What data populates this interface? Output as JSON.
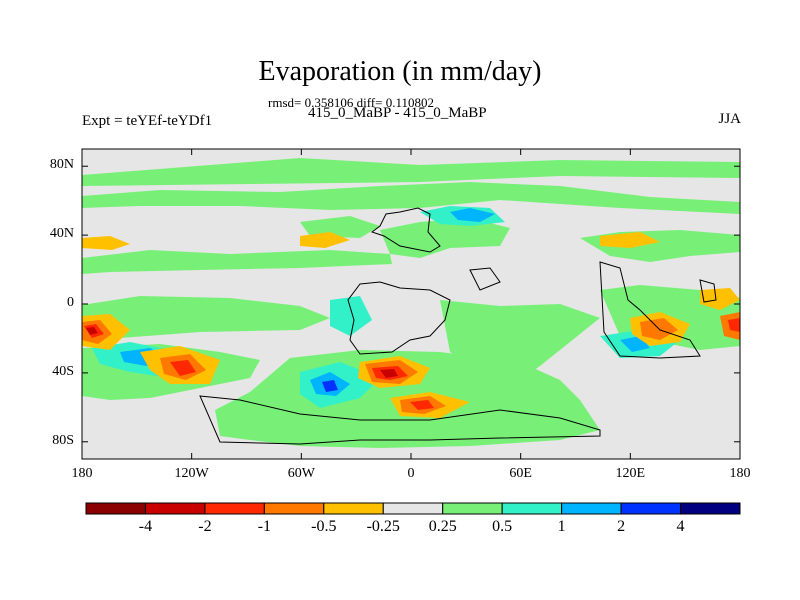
{
  "title": "Evaporation (in mm/day)",
  "stats": "rmsd= 0.358106 diff= 0.110802",
  "comparison": "415_0_MaBP - 415_0_MaBP",
  "experiment": "Expt = teYEf-teYDf1",
  "season": "JJA",
  "map": {
    "lon_ticks": [
      "180",
      "120W",
      "60W",
      "0",
      "60E",
      "120E",
      "180"
    ],
    "lon_values": [
      -180,
      -120,
      -60,
      0,
      60,
      120,
      180
    ],
    "lat_ticks": [
      "80N",
      "40N",
      "0",
      "40S",
      "80S"
    ],
    "lat_values": [
      80,
      40,
      0,
      -40,
      -80
    ],
    "lat_range": [
      -90,
      90
    ],
    "lon_range": [
      -180,
      180
    ]
  },
  "colorbar": {
    "labels": [
      "-4",
      "-2",
      "-1",
      "-0.5",
      "-0.25",
      "0.25",
      "0.5",
      "1",
      "2",
      "4"
    ],
    "colors": [
      "#8b0000",
      "#c80000",
      "#ff2800",
      "#ff7800",
      "#ffc000",
      "#e6e6e6",
      "#78f078",
      "#32f0c8",
      "#00b4ff",
      "#0032ff",
      "#000080"
    ]
  }
}
